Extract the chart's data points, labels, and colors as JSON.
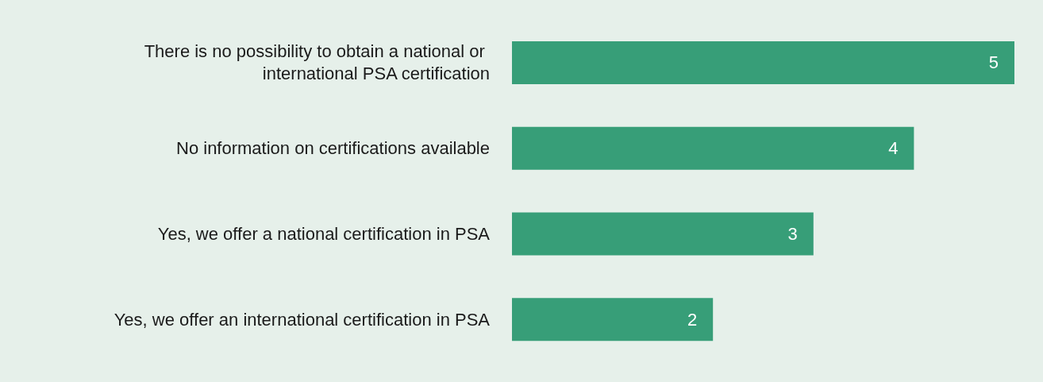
{
  "chart_data": {
    "type": "bar",
    "orientation": "horizontal",
    "categories": [
      "There is no possibility to obtain a national or international PSA certification",
      "No information on certifications available",
      "Yes, we offer a national certification in PSA",
      "Yes, we offer an international certification in PSA"
    ],
    "values": [
      5,
      4,
      3,
      2
    ],
    "color": "#379e78",
    "data_labels": true
  }
}
